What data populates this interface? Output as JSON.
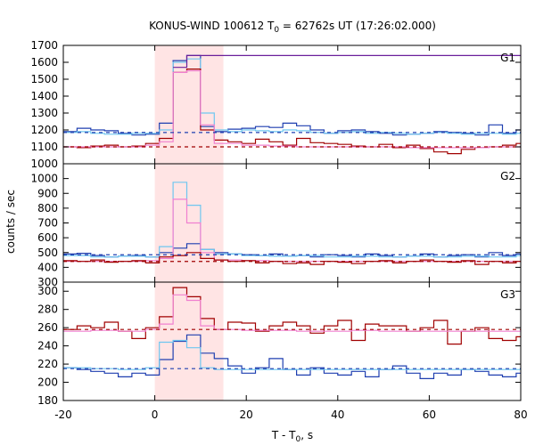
{
  "chart_data": {
    "type": "line",
    "title_main": "KONUS-WIND 100612 T",
    "title_sub": "0",
    "title_rest": " = 62762s UT (17:26:02.000)",
    "xlabel_main": "T - T",
    "xlabel_sub": "0",
    "xlabel_rest": ", s",
    "ylabel": "counts / sec",
    "xlim": [
      -20,
      80
    ],
    "xticks": [
      -20,
      0,
      20,
      40,
      60,
      80
    ],
    "highlight_interval": [
      0,
      15
    ],
    "colors": {
      "dark_red": "#a00000",
      "dark_blue": "#1f3fb0",
      "light_blue": "#6ec6f0",
      "pink": "#f080d0",
      "purple": "#6a1f9a",
      "highlight": "#ffe4e4"
    },
    "panels": [
      {
        "label": "G1",
        "ylim": [
          1000,
          1700
        ],
        "yticks": [
          1000,
          1100,
          1200,
          1300,
          1400,
          1500,
          1600,
          1700
        ],
        "step_series": [
          {
            "color": "dark_blue",
            "x": [
              -20,
              -17,
              -14,
              -11,
              -8,
              -5,
              -2,
              1,
              4,
              7,
              10,
              13,
              16,
              19,
              22,
              25,
              28,
              31,
              34,
              37,
              40,
              43,
              46,
              49,
              52,
              55,
              58,
              61,
              64,
              67,
              70,
              73,
              76,
              79
            ],
            "y": [
              1190,
              1210,
              1200,
              1195,
              1180,
              1170,
              1175,
              1240,
              1610,
              1640,
              1220,
              1190,
              1205,
              1210,
              1220,
              1215,
              1240,
              1225,
              1200,
              1180,
              1195,
              1200,
              1190,
              1180,
              1170,
              1175,
              1180,
              1190,
              1185,
              1180,
              1170,
              1230,
              1180,
              1200
            ]
          },
          {
            "color": "light_blue",
            "x": [
              -20,
              -17,
              -14,
              -11,
              -8,
              -5,
              -2,
              1,
              4,
              7,
              10,
              13,
              16,
              19,
              22,
              25,
              28,
              31,
              34,
              37,
              40,
              43,
              46,
              49,
              52,
              55,
              58,
              61,
              64,
              67,
              70,
              73,
              76,
              79
            ],
            "y": [
              1185,
              1190,
              1180,
              1175,
              1175,
              1180,
              1180,
              1200,
              1600,
              1620,
              1300,
              1200,
              1190,
              1200,
              1195,
              1190,
              1200,
              1195,
              1185,
              1180,
              1185,
              1190,
              1180,
              1185,
              1180,
              1175,
              1180,
              1185,
              1180,
              1175,
              1180,
              1180,
              1175,
              1180
            ]
          },
          {
            "color": "dark_red",
            "x": [
              -20,
              -17,
              -14,
              -11,
              -8,
              -5,
              -2,
              1,
              4,
              7,
              10,
              13,
              16,
              19,
              22,
              25,
              28,
              31,
              34,
              37,
              40,
              43,
              46,
              49,
              52,
              55,
              58,
              61,
              64,
              67,
              70,
              73,
              76,
              79
            ],
            "y": [
              1100,
              1095,
              1105,
              1110,
              1100,
              1105,
              1120,
              1150,
              1540,
              1560,
              1200,
              1140,
              1130,
              1120,
              1145,
              1130,
              1110,
              1150,
              1125,
              1120,
              1115,
              1105,
              1100,
              1115,
              1095,
              1110,
              1090,
              1070,
              1060,
              1085,
              1095,
              1100,
              1110,
              1120
            ]
          },
          {
            "color": "pink",
            "x": [
              -20,
              -14,
              -8,
              -2,
              1,
              4,
              7,
              10,
              13,
              19,
              25,
              31,
              37,
              43,
              49,
              55,
              61,
              67,
              73,
              79
            ],
            "y": [
              1100,
              1100,
              1100,
              1110,
              1130,
              1540,
              1550,
              1230,
              1120,
              1110,
              1105,
              1100,
              1100,
              1100,
              1100,
              1095,
              1095,
              1095,
              1100,
              1100
            ]
          },
          {
            "color": "purple",
            "x": [
              4,
              7,
              10
            ],
            "y": [
              1570,
              1640,
              1640
            ]
          }
        ],
        "background_lines": [
          {
            "color": "dark_blue",
            "value": 1185
          },
          {
            "color": "dark_red",
            "value": 1100
          }
        ]
      },
      {
        "label": "G2",
        "ylim": [
          300,
          1100
        ],
        "yticks": [
          300,
          400,
          500,
          600,
          700,
          800,
          900,
          1000
        ],
        "step_series": [
          {
            "color": "dark_blue",
            "x": [
              -20,
              -17,
              -14,
              -11,
              -8,
              -5,
              -2,
              1,
              4,
              7,
              10,
              13,
              16,
              19,
              22,
              25,
              28,
              31,
              34,
              37,
              40,
              43,
              46,
              49,
              52,
              55,
              58,
              61,
              64,
              67,
              70,
              73,
              76,
              79
            ],
            "y": [
              490,
              495,
              480,
              470,
              475,
              480,
              470,
              500,
              530,
              560,
              520,
              500,
              490,
              485,
              480,
              490,
              475,
              480,
              470,
              485,
              480,
              470,
              490,
              480,
              470,
              475,
              490,
              470,
              480,
              485,
              470,
              500,
              480,
              490
            ]
          },
          {
            "color": "light_blue",
            "x": [
              -20,
              -14,
              -8,
              -2,
              1,
              4,
              7,
              10,
              13,
              19,
              25,
              31,
              37,
              43,
              49,
              55,
              61,
              67,
              73,
              79
            ],
            "y": [
              480,
              470,
              475,
              470,
              540,
              975,
              820,
              520,
              490,
              480,
              475,
              480,
              470,
              475,
              470,
              475,
              470,
              475,
              470,
              480
            ]
          },
          {
            "color": "pink",
            "x": [
              -20,
              -14,
              -8,
              -2,
              1,
              4,
              7,
              10,
              13,
              19,
              25,
              31,
              37,
              43,
              49,
              55,
              61,
              67,
              73,
              79
            ],
            "y": [
              440,
              440,
              440,
              445,
              460,
              860,
              700,
              500,
              450,
              445,
              440,
              440,
              440,
              440,
              440,
              440,
              440,
              440,
              440,
              440
            ]
          },
          {
            "color": "dark_red",
            "x": [
              -20,
              -17,
              -14,
              -11,
              -8,
              -5,
              -2,
              1,
              4,
              7,
              10,
              13,
              16,
              19,
              22,
              25,
              28,
              31,
              34,
              37,
              40,
              43,
              46,
              49,
              52,
              55,
              58,
              61,
              64,
              67,
              70,
              73,
              76,
              79
            ],
            "y": [
              445,
              440,
              450,
              435,
              440,
              445,
              430,
              470,
              480,
              500,
              460,
              450,
              440,
              445,
              430,
              440,
              425,
              430,
              420,
              440,
              435,
              425,
              440,
              445,
              430,
              440,
              450,
              440,
              435,
              445,
              420,
              440,
              430,
              440
            ]
          }
        ],
        "background_lines": [
          {
            "color": "dark_blue",
            "value": 485
          },
          {
            "color": "dark_red",
            "value": 440
          }
        ]
      },
      {
        "label": "G3",
        "ylim": [
          180,
          310
        ],
        "yticks": [
          180,
          200,
          220,
          240,
          260,
          280,
          300
        ],
        "step_series": [
          {
            "color": "dark_red",
            "x": [
              -20,
              -17,
              -14,
              -11,
              -8,
              -5,
              -2,
              1,
              4,
              7,
              10,
              13,
              16,
              19,
              22,
              25,
              28,
              31,
              34,
              37,
              40,
              43,
              46,
              49,
              52,
              55,
              58,
              61,
              64,
              67,
              70,
              73,
              76,
              79
            ],
            "y": [
              258,
              262,
              260,
              266,
              256,
              248,
              260,
              272,
              304,
              294,
              270,
              258,
              266,
              265,
              256,
              262,
              266,
              262,
              254,
              262,
              268,
              246,
              264,
              262,
              262,
              256,
              260,
              268,
              242,
              256,
              260,
              248,
              246,
              250
            ]
          },
          {
            "color": "pink",
            "x": [
              -20,
              -14,
              -8,
              -2,
              1,
              4,
              7,
              10,
              13,
              19,
              25,
              31,
              37,
              43,
              49,
              55,
              61,
              67,
              73,
              79
            ],
            "y": [
              256,
              257,
              256,
              258,
              264,
              296,
              290,
              262,
              258,
              257,
              257,
              256,
              256,
              257,
              256,
              256,
              256,
              256,
              256,
              256
            ]
          },
          {
            "color": "dark_blue",
            "x": [
              -20,
              -17,
              -14,
              -11,
              -8,
              -5,
              -2,
              1,
              4,
              7,
              10,
              13,
              16,
              19,
              22,
              25,
              28,
              31,
              34,
              37,
              40,
              43,
              46,
              49,
              52,
              55,
              58,
              61,
              64,
              67,
              70,
              73,
              76,
              79
            ],
            "y": [
              216,
              214,
              212,
              210,
              206,
              210,
              208,
              225,
              245,
              252,
              232,
              226,
              218,
              210,
              216,
              226,
              214,
              208,
              216,
              210,
              208,
              212,
              206,
              214,
              218,
              210,
              204,
              210,
              208,
              214,
              212,
              208,
              206,
              210
            ]
          },
          {
            "color": "light_blue",
            "x": [
              -20,
              -14,
              -8,
              -2,
              1,
              4,
              7,
              10,
              13,
              19,
              25,
              31,
              37,
              43,
              49,
              55,
              61,
              67,
              73,
              79
            ],
            "y": [
              216,
              215,
              214,
              216,
              244,
              246,
              238,
              216,
              214,
              214,
              214,
              214,
              214,
              214,
              214,
              214,
              214,
              214,
              214,
              214
            ]
          }
        ],
        "background_lines": [
          {
            "color": "dark_red",
            "value": 258
          },
          {
            "color": "dark_blue",
            "value": 215
          }
        ]
      }
    ]
  }
}
